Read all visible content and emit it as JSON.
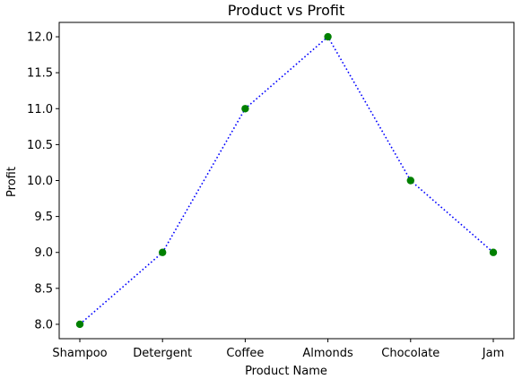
{
  "chart_data": {
    "type": "line",
    "title": "Product vs Profit",
    "xlabel": "Product Name",
    "ylabel": "Profit",
    "categories": [
      "Shampoo",
      "Detergent",
      "Coffee",
      "Almonds",
      "Chocolate",
      "Jam"
    ],
    "series": [
      {
        "values": [
          8,
          9,
          11,
          12,
          10,
          9
        ]
      }
    ],
    "ylim": [
      7.8,
      12.2
    ],
    "yticks": [
      8.0,
      8.5,
      9.0,
      9.5,
      10.0,
      10.5,
      11.0,
      11.5,
      12.0
    ],
    "ytick_labels": [
      "8.0",
      "8.5",
      "9.0",
      "9.5",
      "10.0",
      "10.5",
      "11.0",
      "11.5",
      "12.0"
    ],
    "grid": false,
    "line_color": "#0000ff",
    "line_style": "dotted",
    "marker_color": "#008000"
  }
}
